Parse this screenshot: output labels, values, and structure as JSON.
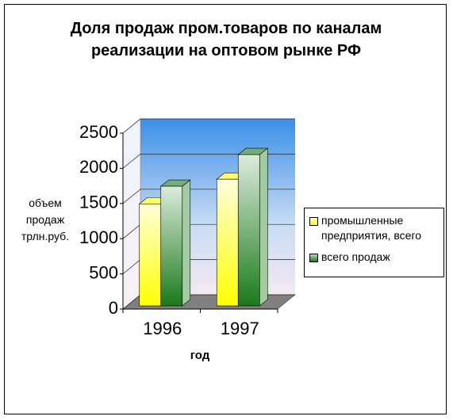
{
  "chart_data": {
    "type": "bar3d",
    "title": "Доля продаж пром.товаров по каналам реализации на оптовом рынке РФ",
    "y_label": "объем продаж трлн.руб.",
    "x_label": "год",
    "categories": [
      "1996",
      "1997"
    ],
    "series": [
      {
        "name": "промышленные предприятия, всего",
        "color": "#ffff00",
        "values": [
          1450,
          1800
        ]
      },
      {
        "name": "всего продаж",
        "color": "#1a7a1a",
        "values": [
          1700,
          2150
        ]
      }
    ],
    "ylim": [
      0,
      2500
    ],
    "yticks": [
      0,
      500,
      1000,
      1500,
      2000,
      2500
    ],
    "grid": true,
    "legend": "right"
  }
}
